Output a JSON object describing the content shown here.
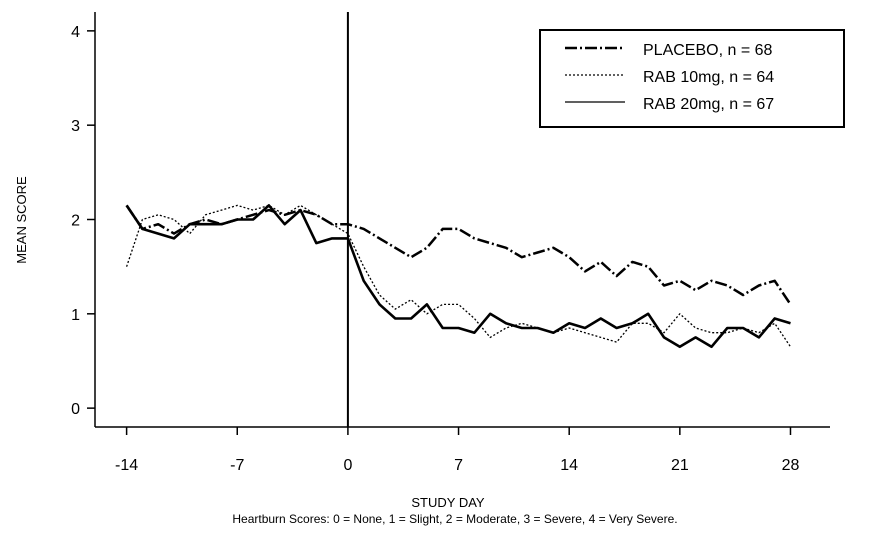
{
  "chart_data": {
    "type": "line",
    "xlabel": "STUDY DAY",
    "ylabel": "MEAN SCORE",
    "caption": "Heartburn Scores: 0 = None, 1 = Slight, 2 = Moderate, 3 = Severe, 4 = Very Severe.",
    "xlim": [
      -16,
      30.5
    ],
    "ylim": [
      -0.2,
      4.2
    ],
    "x_ticks": [
      -14,
      -7,
      0,
      7,
      14,
      21,
      28
    ],
    "x_tick_labels": [
      "-14",
      "-7",
      "0",
      "7",
      "14",
      "21",
      "28"
    ],
    "y_ticks": [
      0,
      1,
      2,
      3,
      4
    ],
    "y_tick_labels": [
      "0",
      "1",
      "2",
      "3",
      "4"
    ],
    "reference_line_x": 0,
    "grid": false,
    "legend_position": "top-right",
    "series": [
      {
        "name": "PLACEBO, n = 68",
        "style": "dash-dot",
        "x": [
          -14,
          -13,
          -12,
          -11,
          -10,
          -9,
          -8,
          -7,
          -6,
          -5,
          -4,
          -3,
          -2,
          -1,
          0,
          1,
          2,
          3,
          4,
          5,
          6,
          7,
          8,
          9,
          10,
          11,
          12,
          13,
          14,
          15,
          16,
          17,
          18,
          19,
          20,
          21,
          22,
          23,
          24,
          25,
          26,
          27,
          28
        ],
        "y": [
          2.15,
          1.9,
          1.95,
          1.85,
          1.95,
          2.0,
          1.95,
          2.0,
          2.05,
          2.1,
          2.05,
          2.1,
          2.05,
          1.95,
          1.95,
          1.9,
          1.8,
          1.7,
          1.6,
          1.7,
          1.9,
          1.9,
          1.8,
          1.75,
          1.7,
          1.6,
          1.65,
          1.7,
          1.6,
          1.45,
          1.55,
          1.4,
          1.55,
          1.5,
          1.3,
          1.35,
          1.25,
          1.35,
          1.3,
          1.2,
          1.3,
          1.35,
          1.1
        ]
      },
      {
        "name": "RAB 10mg, n = 64",
        "style": "dotted",
        "x": [
          -14,
          -13,
          -12,
          -11,
          -10,
          -9,
          -8,
          -7,
          -6,
          -5,
          -4,
          -3,
          -2,
          -1,
          0,
          1,
          2,
          3,
          4,
          5,
          6,
          7,
          8,
          9,
          10,
          11,
          12,
          13,
          14,
          15,
          16,
          17,
          18,
          19,
          20,
          21,
          22,
          23,
          24,
          25,
          26,
          27,
          28
        ],
        "y": [
          1.5,
          2.0,
          2.05,
          2.0,
          1.85,
          2.05,
          2.1,
          2.15,
          2.1,
          2.15,
          2.05,
          2.15,
          2.05,
          1.95,
          1.85,
          1.5,
          1.2,
          1.05,
          1.15,
          1.0,
          1.1,
          1.1,
          0.95,
          0.75,
          0.85,
          0.9,
          0.85,
          0.8,
          0.85,
          0.8,
          0.75,
          0.7,
          0.9,
          0.9,
          0.8,
          1.0,
          0.85,
          0.8,
          0.8,
          0.85,
          0.8,
          0.9,
          0.65
        ]
      },
      {
        "name": "RAB 20mg, n = 67",
        "style": "solid",
        "x": [
          -14,
          -13,
          -12,
          -11,
          -10,
          -9,
          -8,
          -7,
          -6,
          -5,
          -4,
          -3,
          -2,
          -1,
          0,
          1,
          2,
          3,
          4,
          5,
          6,
          7,
          8,
          9,
          10,
          11,
          12,
          13,
          14,
          15,
          16,
          17,
          18,
          19,
          20,
          21,
          22,
          23,
          24,
          25,
          26,
          27,
          28
        ],
        "y": [
          2.15,
          1.9,
          1.85,
          1.8,
          1.95,
          1.95,
          1.95,
          2.0,
          2.0,
          2.15,
          1.95,
          2.1,
          1.75,
          1.8,
          1.8,
          1.35,
          1.1,
          0.95,
          0.95,
          1.1,
          0.85,
          0.85,
          0.8,
          1.0,
          0.9,
          0.85,
          0.85,
          0.8,
          0.9,
          0.85,
          0.95,
          0.85,
          0.9,
          1.0,
          0.75,
          0.65,
          0.75,
          0.65,
          0.85,
          0.85,
          0.75,
          0.95,
          0.9
        ]
      }
    ]
  }
}
